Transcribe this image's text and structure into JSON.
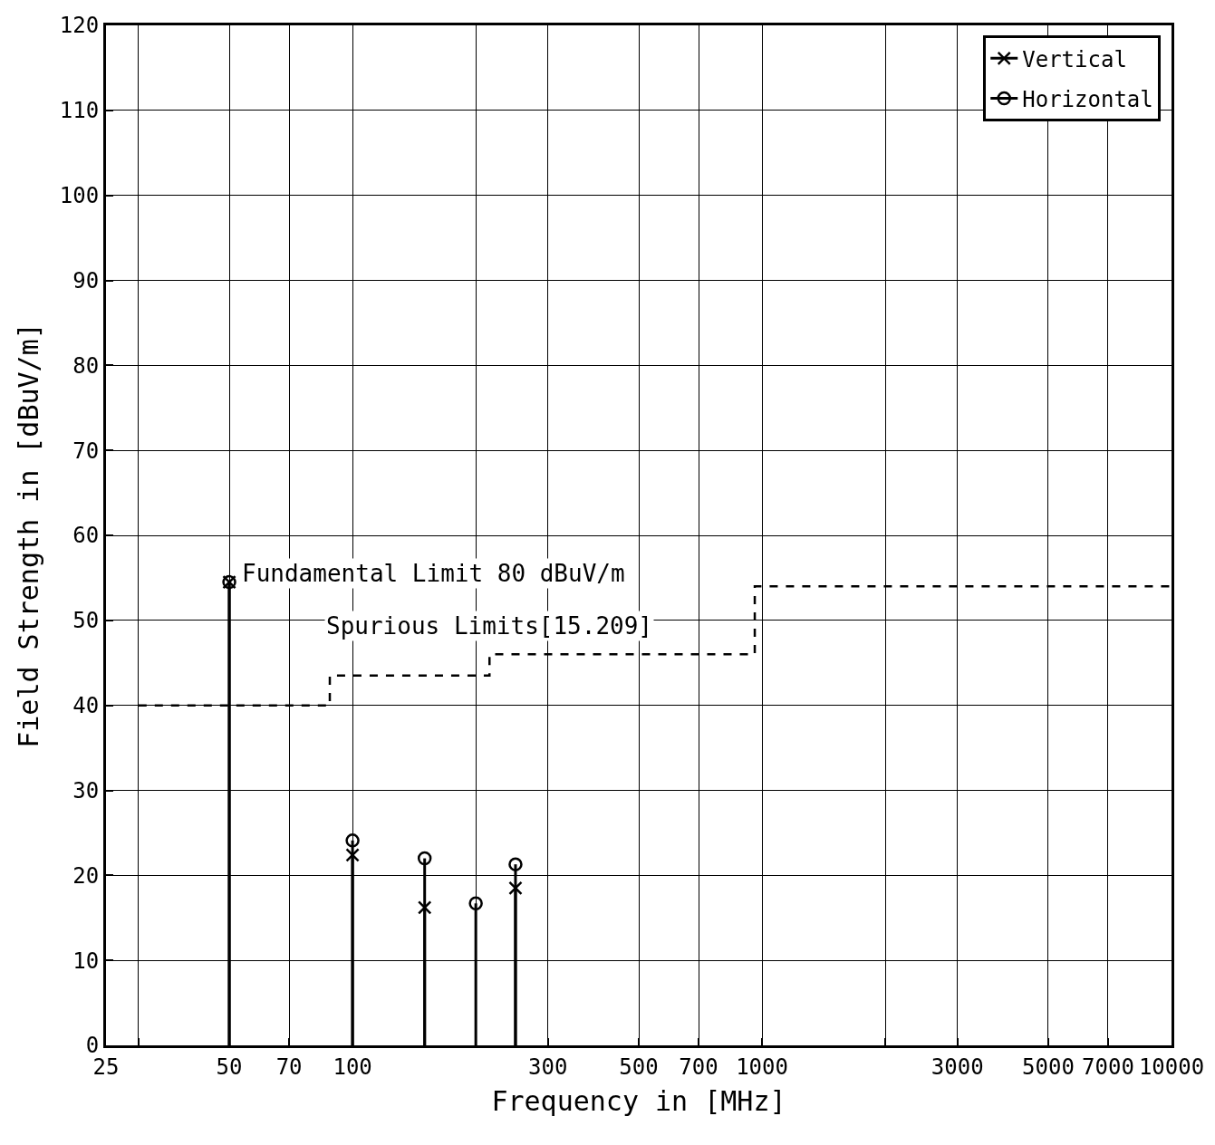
{
  "chart_data": {
    "type": "lollipop",
    "xlabel": "Frequency in [MHz]",
    "ylabel": "Field Strength in [dBuV/m]",
    "x": [
      50,
      100,
      150,
      200,
      250
    ],
    "series": [
      {
        "name": "Vertical",
        "color": "#000000",
        "values": [
          54.5,
          22.4,
          16.2,
          null,
          18.5
        ],
        "marker": "cross",
        "line_style": "solid"
      },
      {
        "name": "Horizontal",
        "color": "#000000",
        "values": [
          54.5,
          24.1,
          22.0,
          16.7,
          21.3
        ],
        "marker": "circle",
        "line_style": "solid"
      },
      {
        "type": "step",
        "color": "#000000",
        "x": [
          30,
          88,
          216,
          960,
          10000
        ],
        "values": [
          40,
          43.5,
          46,
          54,
          54
        ],
        "marker": "none",
        "line_style": "dashed"
      }
    ],
    "log": "x",
    "xlim": [
      25,
      10000
    ],
    "xticks": [
      25,
      {
        "value": 30,
        "label": null
      },
      50,
      70,
      100,
      {
        "value": 200,
        "label": null
      },
      300,
      500,
      700,
      1000,
      {
        "value": 2000,
        "label": null
      },
      3000,
      5000,
      7000,
      10000
    ],
    "ylim": [
      0,
      120
    ],
    "yticks": [
      0,
      10,
      20,
      30,
      40,
      50,
      60,
      70,
      80,
      90,
      100,
      110,
      120
    ],
    "annotations": [
      {
        "text": "Fundamental Limit 80 dBuV/m",
        "x": 50,
        "y": 54.5
      },
      {
        "text": "Spurious Limits[15.209]",
        "x": 216,
        "y": 46
      }
    ],
    "grid": true,
    "legend": "top right"
  }
}
